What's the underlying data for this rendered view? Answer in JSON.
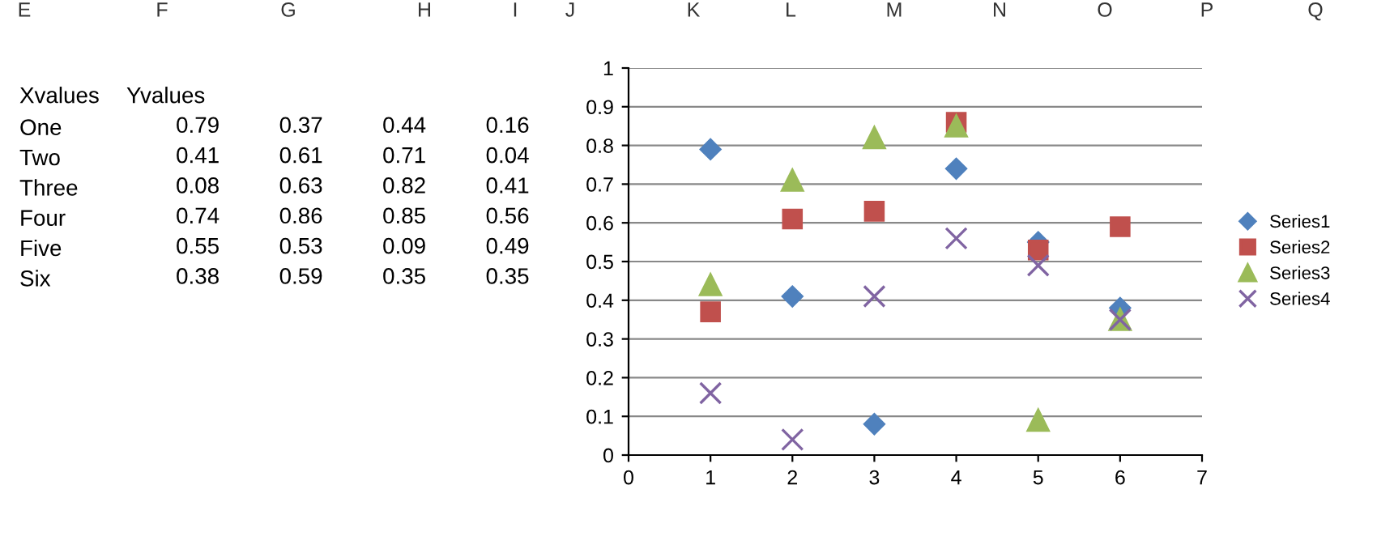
{
  "chart_data": [
    {
      "type": "heatmap",
      "categories": [
        null,
        null,
        null,
        null
      ],
      "y_categories": [
        "One",
        "Two",
        "Three",
        "Four",
        "Five",
        "Six"
      ],
      "cells": [
        [
          0.79,
          0.37,
          0.44,
          0.16
        ],
        [
          0.41,
          0.61,
          0.71,
          0.04
        ],
        [
          0.08,
          0.63,
          0.82,
          0.41
        ],
        [
          0.74,
          0.86,
          0.85,
          0.56
        ],
        [
          0.55,
          0.53,
          0.09,
          0.49
        ],
        [
          0.38,
          0.59,
          0.35,
          0.35
        ]
      ],
      "data_labels": true,
      "annotations": [
        "E",
        "F",
        "G",
        "H",
        "I",
        "J",
        "K",
        "L",
        "M",
        "N",
        "O",
        "P",
        "Q",
        "Xvalues",
        "Yvalues"
      ]
    },
    {
      "type": "scatter",
      "x": [
        1,
        2,
        3,
        4,
        5,
        6
      ],
      "series": [
        {
          "name": "Series1",
          "color": "#4f81bd",
          "marker": "diamond",
          "values": [
            0.79,
            0.41,
            0.08,
            0.74,
            0.55,
            0.38
          ]
        },
        {
          "name": "Series2",
          "color": "#c0504d",
          "marker": "square",
          "values": [
            0.37,
            0.61,
            0.63,
            0.86,
            0.53,
            0.59
          ]
        },
        {
          "name": "Series3",
          "color": "#9bbb59",
          "marker": "triangle",
          "values": [
            0.44,
            0.71,
            0.82,
            0.85,
            0.09,
            0.35
          ]
        },
        {
          "name": "Series4",
          "color": "#8064a2",
          "marker": "cross",
          "values": [
            0.16,
            0.04,
            0.41,
            0.56,
            0.49,
            0.35
          ]
        }
      ],
      "xlim": [
        0,
        7
      ],
      "xticks": [
        0,
        1,
        2,
        3,
        4,
        5,
        6,
        7
      ],
      "ylim": [
        0,
        1
      ],
      "yticks": [
        0,
        0.1,
        0.2,
        0.3,
        0.4,
        0.5,
        0.6,
        0.7,
        0.8,
        0.9,
        1
      ],
      "grid": "y",
      "legend": "right"
    }
  ]
}
